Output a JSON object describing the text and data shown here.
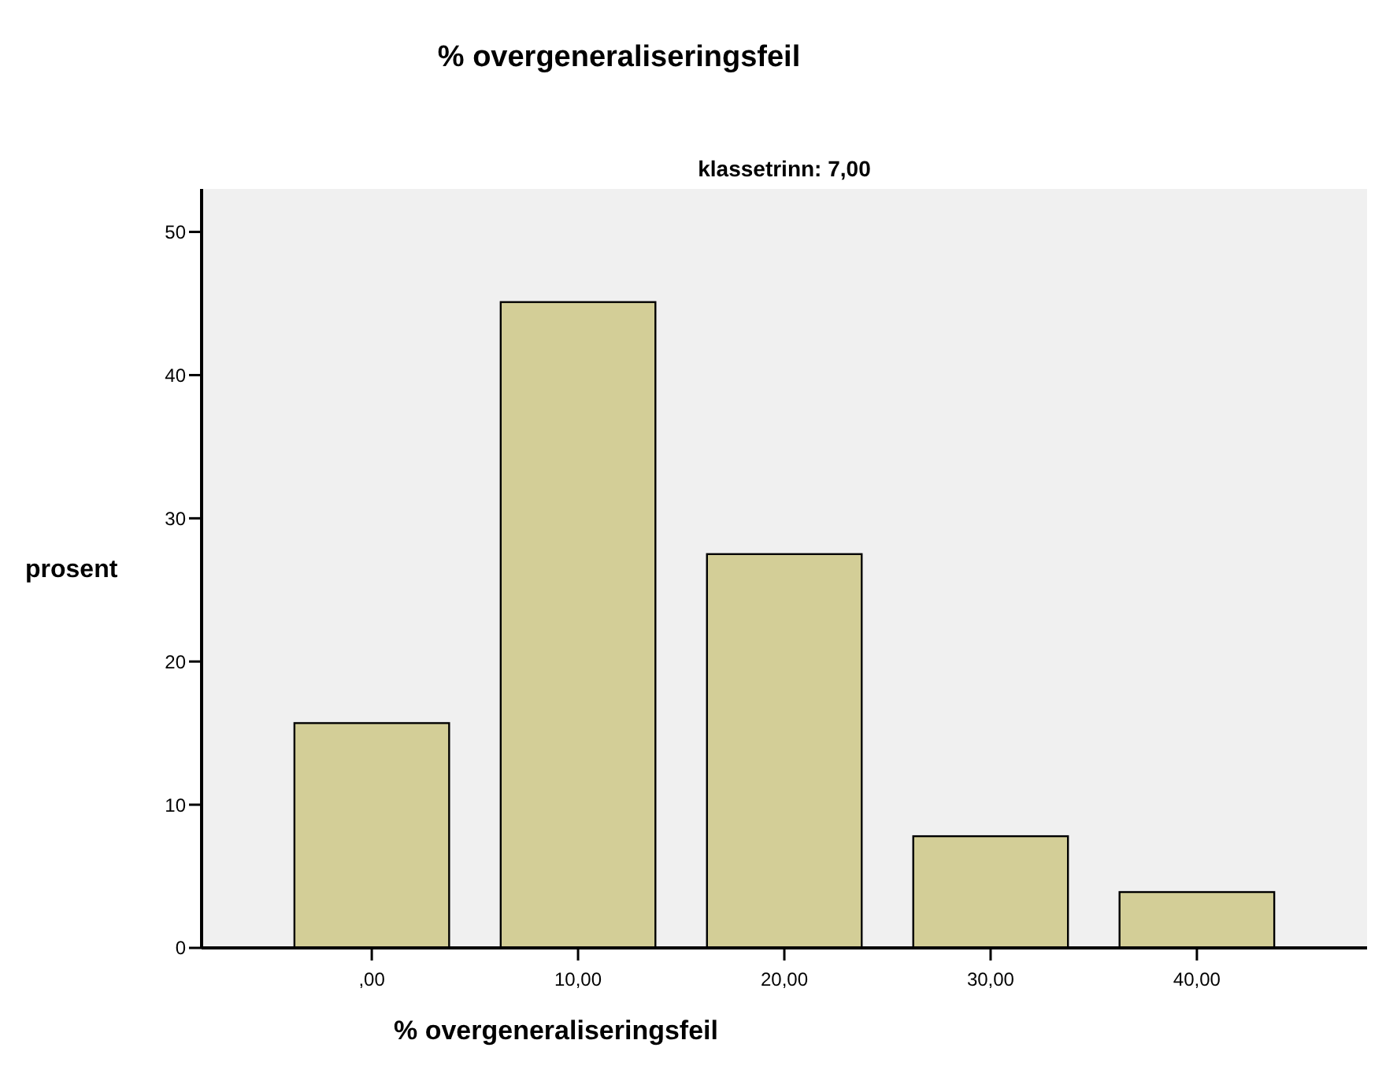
{
  "chart_data": {
    "type": "bar",
    "title": "% overgeneraliseringsfeil",
    "subtitle": "klassetrinn: 7,00",
    "xlabel": "% overgeneraliseringsfeil",
    "ylabel": "prosent",
    "categories": [
      ",00",
      "10,00",
      "20,00",
      "30,00",
      "40,00"
    ],
    "values": [
      15.7,
      45.1,
      27.5,
      7.8,
      3.9
    ],
    "color": "#d3ce97",
    "ylim": [
      0,
      53
    ],
    "yticks": [
      0,
      10,
      20,
      30,
      40,
      50
    ],
    "grid": false
  }
}
